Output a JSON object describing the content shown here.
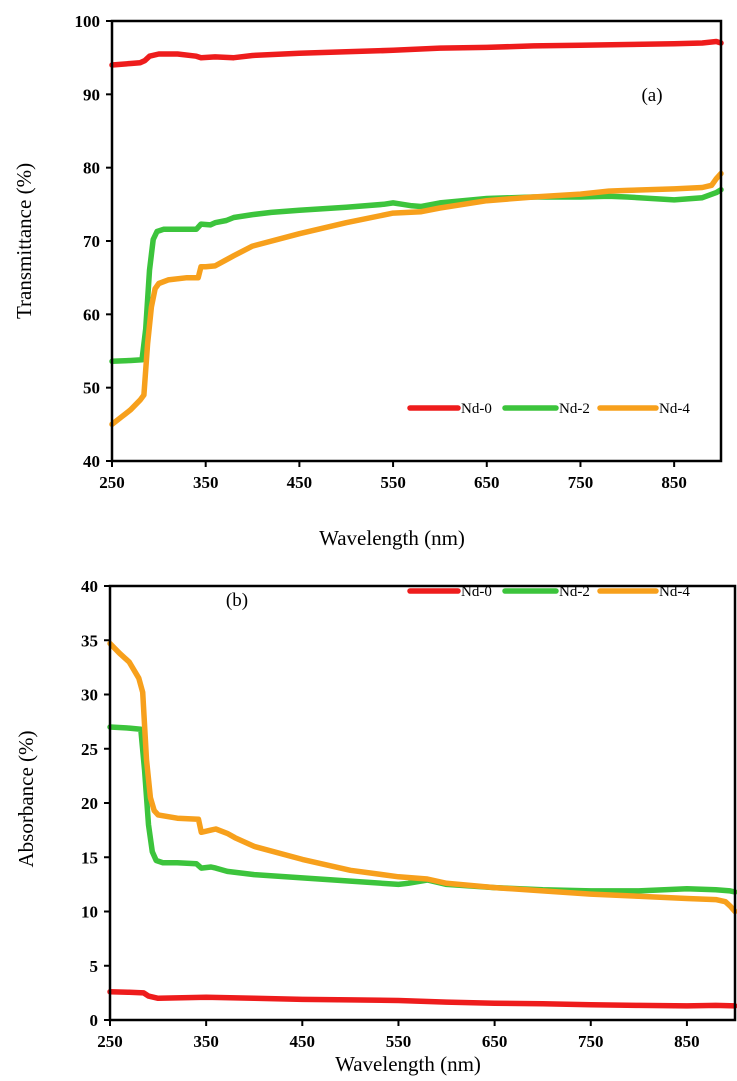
{
  "chart_data": [
    {
      "type": "line",
      "panel": "(a)",
      "xlabel": "Wavelength (nm)",
      "ylabel": "Transmittance (%)",
      "xlim": [
        250,
        900
      ],
      "ylim": [
        40,
        100
      ],
      "xticks": [
        250,
        350,
        450,
        550,
        650,
        750,
        850
      ],
      "yticks": [
        40,
        50,
        60,
        70,
        80,
        90,
        100
      ],
      "legend_position": "bottom-right",
      "grid": false,
      "series": [
        {
          "name": "Nd-0",
          "color": "#ee1c1c",
          "x": [
            250,
            270,
            280,
            285,
            290,
            300,
            320,
            340,
            345,
            360,
            380,
            400,
            450,
            500,
            550,
            600,
            650,
            700,
            750,
            800,
            850,
            880,
            895,
            900
          ],
          "y": [
            94.0,
            94.2,
            94.3,
            94.6,
            95.2,
            95.5,
            95.5,
            95.2,
            95.0,
            95.1,
            95.0,
            95.3,
            95.6,
            95.8,
            96.0,
            96.3,
            96.4,
            96.6,
            96.7,
            96.8,
            96.9,
            97.0,
            97.2,
            97.0
          ]
        },
        {
          "name": "Nd-2",
          "color": "#3cc43c",
          "x": [
            250,
            270,
            282,
            286,
            290,
            294,
            298,
            305,
            320,
            340,
            345,
            355,
            360,
            372,
            380,
            400,
            420,
            450,
            500,
            540,
            550,
            560,
            570,
            580,
            600,
            650,
            700,
            750,
            780,
            800,
            850,
            880,
            895,
            900
          ],
          "y": [
            53.6,
            53.7,
            53.8,
            58.0,
            66.0,
            70.2,
            71.3,
            71.6,
            71.6,
            71.6,
            72.3,
            72.2,
            72.5,
            72.8,
            73.2,
            73.6,
            73.9,
            74.2,
            74.6,
            75.0,
            75.2,
            75.0,
            74.8,
            74.7,
            75.2,
            75.8,
            76.0,
            76.0,
            76.1,
            76.0,
            75.6,
            75.9,
            76.6,
            77.0
          ]
        },
        {
          "name": "Nd-4",
          "color": "#f7a01c",
          "x": [
            250,
            260,
            270,
            280,
            284,
            288,
            292,
            296,
            300,
            310,
            330,
            342,
            345,
            350,
            360,
            370,
            380,
            400,
            450,
            500,
            550,
            580,
            600,
            650,
            700,
            750,
            780,
            800,
            850,
            880,
            890,
            895,
            900
          ],
          "y": [
            45.0,
            46.0,
            47.0,
            48.3,
            49.0,
            56.0,
            61.0,
            63.5,
            64.2,
            64.7,
            65.0,
            65.0,
            66.5,
            66.5,
            66.6,
            67.3,
            68.0,
            69.3,
            71.0,
            72.5,
            73.8,
            74.0,
            74.5,
            75.5,
            76.0,
            76.4,
            76.8,
            76.9,
            77.1,
            77.3,
            77.6,
            78.5,
            79.2
          ]
        }
      ]
    },
    {
      "type": "line",
      "panel": "(b)",
      "xlabel": "Wavelength (nm)",
      "ylabel": "Absorbance (%)",
      "xlim": [
        250,
        900
      ],
      "ylim": [
        0,
        40
      ],
      "xticks": [
        250,
        350,
        450,
        550,
        650,
        750,
        850
      ],
      "yticks": [
        0,
        5,
        10,
        15,
        20,
        25,
        30,
        35,
        40
      ],
      "legend_position": "top-right",
      "grid": false,
      "series": [
        {
          "name": "Nd-0",
          "color": "#ee1c1c",
          "x": [
            250,
            270,
            285,
            290,
            300,
            350,
            400,
            450,
            500,
            550,
            600,
            650,
            700,
            750,
            800,
            850,
            880,
            900
          ],
          "y": [
            2.6,
            2.55,
            2.5,
            2.2,
            2.0,
            2.1,
            2.0,
            1.9,
            1.85,
            1.8,
            1.65,
            1.55,
            1.5,
            1.4,
            1.35,
            1.3,
            1.35,
            1.3
          ]
        },
        {
          "name": "Nd-2",
          "color": "#3cc43c",
          "x": [
            250,
            270,
            282,
            286,
            290,
            294,
            298,
            305,
            320,
            340,
            345,
            355,
            360,
            372,
            400,
            450,
            500,
            550,
            560,
            580,
            600,
            650,
            700,
            750,
            800,
            850,
            880,
            895,
            900
          ],
          "y": [
            27.0,
            26.9,
            26.8,
            23.0,
            18.0,
            15.5,
            14.7,
            14.5,
            14.5,
            14.4,
            14.0,
            14.1,
            14.0,
            13.7,
            13.4,
            13.1,
            12.8,
            12.5,
            12.6,
            12.9,
            12.5,
            12.2,
            12.0,
            11.9,
            11.9,
            12.1,
            12.0,
            11.9,
            11.8
          ]
        },
        {
          "name": "Nd-4",
          "color": "#f7a01c",
          "x": [
            250,
            260,
            270,
            280,
            284,
            288,
            292,
            296,
            300,
            320,
            342,
            345,
            355,
            360,
            372,
            380,
            400,
            450,
            500,
            550,
            580,
            600,
            650,
            700,
            750,
            800,
            850,
            880,
            890,
            895,
            900
          ],
          "y": [
            34.7,
            33.8,
            33.0,
            31.5,
            30.2,
            24.0,
            20.5,
            19.3,
            18.9,
            18.6,
            18.5,
            17.3,
            17.5,
            17.6,
            17.2,
            16.8,
            16.0,
            14.8,
            13.8,
            13.2,
            13.0,
            12.6,
            12.2,
            11.9,
            11.6,
            11.4,
            11.2,
            11.1,
            10.9,
            10.5,
            10.0
          ]
        }
      ]
    }
  ]
}
